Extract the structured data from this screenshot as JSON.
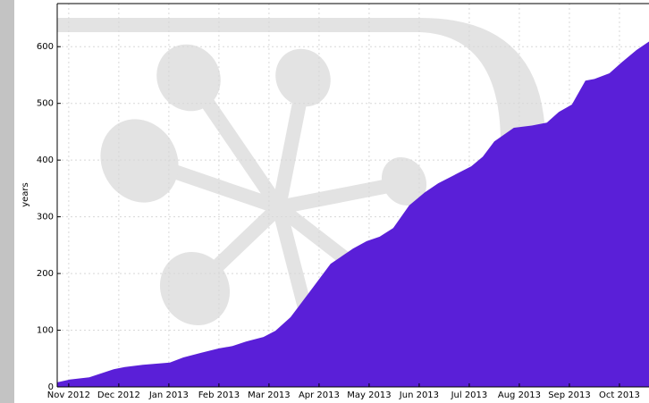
{
  "chart_data": {
    "type": "area",
    "y_label": "years",
    "x": [
      -0.23,
      0.02,
      0.41,
      0.89,
      1.12,
      1.48,
      2.02,
      2.29,
      2.64,
      3.0,
      3.27,
      3.54,
      3.89,
      4.13,
      4.43,
      4.79,
      5.23,
      5.68,
      5.95,
      6.21,
      6.48,
      6.8,
      7.11,
      7.38,
      7.73,
      8.04,
      8.27,
      8.5,
      8.89,
      9.25,
      9.55,
      9.79,
      10.05,
      10.32,
      10.5,
      10.8,
      11.04,
      11.34,
      11.59
    ],
    "values": [
      8,
      13,
      17,
      31,
      35,
      39,
      43,
      52,
      60,
      68,
      72,
      80,
      88,
      99,
      123,
      165,
      217,
      244,
      257,
      265,
      280,
      320,
      343,
      359,
      375,
      389,
      406,
      433,
      457,
      461,
      466,
      485,
      498,
      540,
      543,
      553,
      572,
      594,
      609
    ],
    "color": "#5a1fd8",
    "xlim": [
      -0.23,
      11.59
    ],
    "xticks": [
      {
        "value": 0,
        "label": "Nov 2012"
      },
      {
        "value": 1,
        "label": "Dec 2012"
      },
      {
        "value": 2,
        "label": "Jan 2013"
      },
      {
        "value": 3,
        "label": "Feb 2013"
      },
      {
        "value": 4,
        "label": "Mar 2013"
      },
      {
        "value": 5,
        "label": "Apr 2013"
      },
      {
        "value": 6,
        "label": "May 2013"
      },
      {
        "value": 7,
        "label": "Jun 2013"
      },
      {
        "value": 8,
        "label": "Jul 2013"
      },
      {
        "value": 9,
        "label": "Aug 2013"
      },
      {
        "value": 10,
        "label": "Sep 2013"
      },
      {
        "value": 11,
        "label": "Oct 2013"
      }
    ],
    "ylim": [
      0,
      676
    ],
    "yticks": [
      0,
      100,
      200,
      300,
      400,
      500,
      600
    ],
    "grid": true
  }
}
